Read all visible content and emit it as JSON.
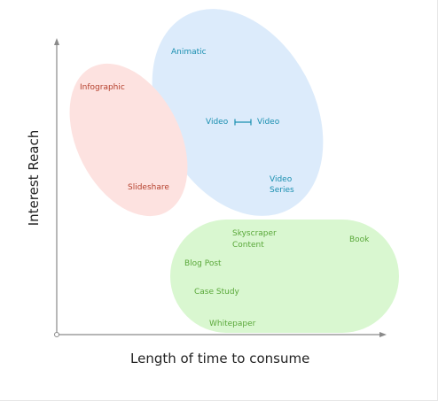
{
  "diagram": {
    "x_axis_label": "Length of time to consume",
    "y_axis_label": "Interest Reach",
    "groups": {
      "red": {
        "color": "#fde2e0",
        "text_color": "#b5402d",
        "items": [
          "Infographic",
          "Slideshare"
        ]
      },
      "blue": {
        "color": "#dcebfb",
        "text_color": "#1a8fb0",
        "items": [
          "Animatic",
          "Video",
          "Video",
          "Video Series"
        ]
      },
      "green": {
        "color": "#d9f7d0",
        "text_color": "#5aa83a",
        "items": [
          "Skyscraper Content",
          "Book",
          "Blog Post",
          "Case Study",
          "Whitepaper"
        ]
      }
    },
    "labels": {
      "infographic": "Infographic",
      "slideshare": "Slideshare",
      "animatic": "Animatic",
      "video_a": "Video",
      "video_b": "Video",
      "video_series_1": "Video",
      "video_series_2": "Series",
      "skyscraper_1": "Skyscraper",
      "skyscraper_2": "Content",
      "book": "Book",
      "blog_post": "Blog Post",
      "case_study": "Case Study",
      "whitepaper": "Whitepaper"
    }
  }
}
